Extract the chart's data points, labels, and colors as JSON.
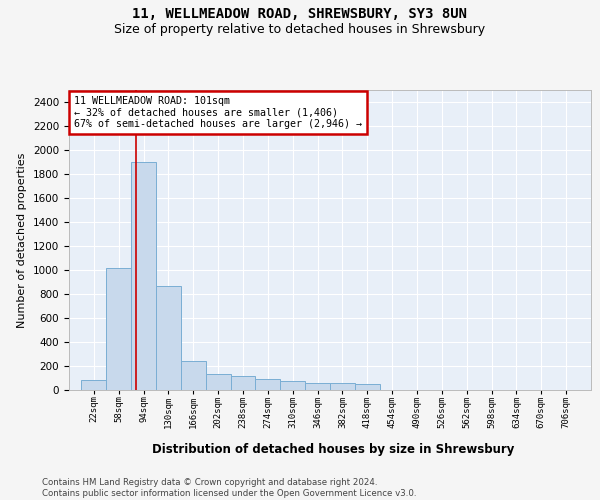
{
  "title": "11, WELLMEADOW ROAD, SHREWSBURY, SY3 8UN",
  "subtitle": "Size of property relative to detached houses in Shrewsbury",
  "xlabel": "Distribution of detached houses by size in Shrewsbury",
  "ylabel": "Number of detached properties",
  "bar_color": "#c8d9ec",
  "bar_edge_color": "#7aaed4",
  "background_color": "#e8eff8",
  "grid_color": "#ffffff",
  "property_line_x": 101,
  "annotation_line1": "11 WELLMEADOW ROAD: 101sqm",
  "annotation_line2": "← 32% of detached houses are smaller (1,406)",
  "annotation_line3": "67% of semi-detached houses are larger (2,946) →",
  "annotation_box_color": "#ffffff",
  "annotation_box_edge": "#cc0000",
  "property_line_color": "#cc0000",
  "bin_edges": [
    22,
    58,
    94,
    130,
    166,
    202,
    238,
    274,
    310,
    346,
    382,
    418,
    454,
    490,
    526,
    562,
    598,
    634,
    670,
    706,
    742
  ],
  "bin_heights": [
    85,
    1020,
    1900,
    870,
    240,
    130,
    115,
    95,
    75,
    60,
    55,
    50,
    0,
    0,
    0,
    0,
    0,
    0,
    0,
    0
  ],
  "ylim": [
    0,
    2500
  ],
  "yticks": [
    0,
    200,
    400,
    600,
    800,
    1000,
    1200,
    1400,
    1600,
    1800,
    2000,
    2200,
    2400
  ],
  "fig_bg": "#f5f5f5",
  "footer": "Contains HM Land Registry data © Crown copyright and database right 2024.\nContains public sector information licensed under the Open Government Licence v3.0."
}
